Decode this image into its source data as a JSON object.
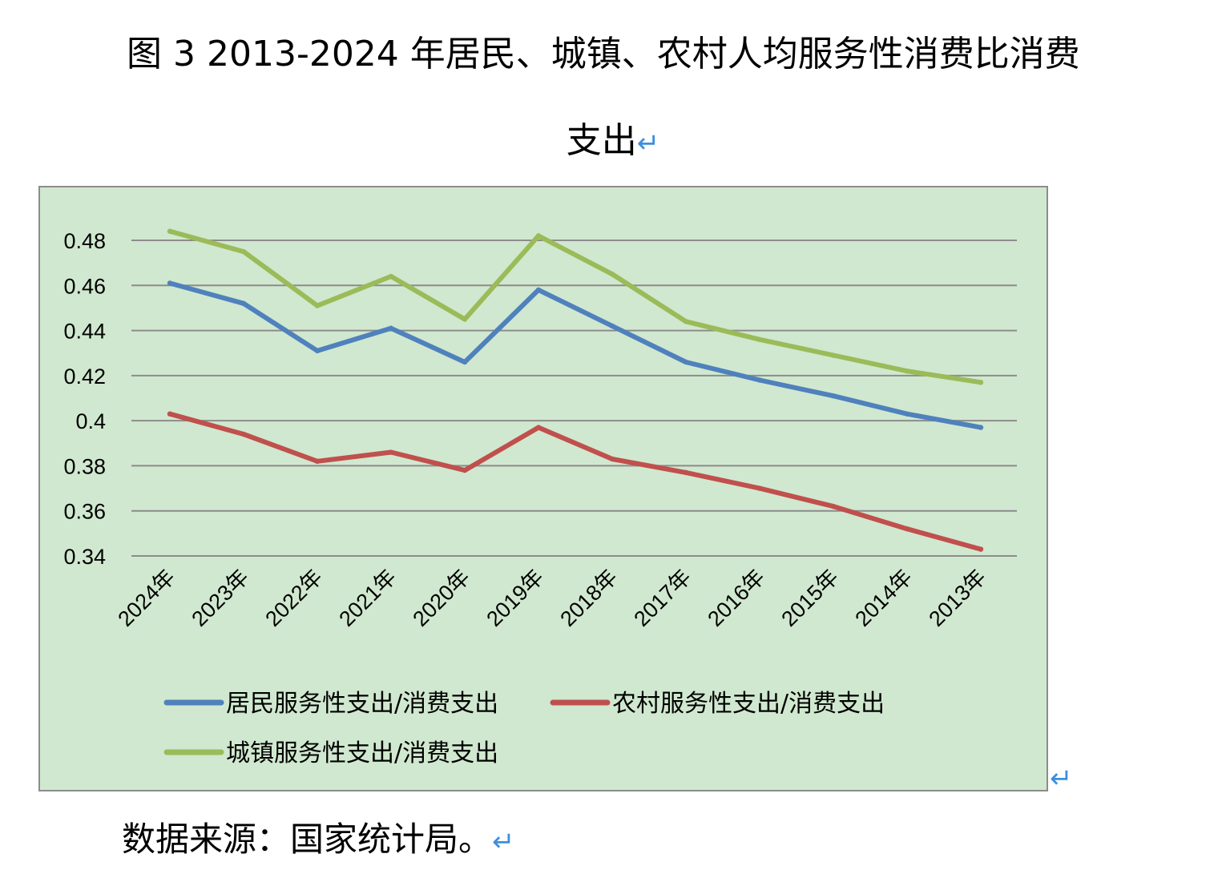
{
  "figure": {
    "title_line_1": "图 3 2013-2024 年居民、城镇、农村人均服务性消费比消费",
    "title_line_2": "支出",
    "return_mark": "↵"
  },
  "source_note": {
    "text": "数据来源：国家统计局。",
    "return_mark": "↵"
  },
  "colors": {
    "plot_background": "#d0e8cf",
    "gridline": "#8c8c8c",
    "series_resident": "#4f81bd",
    "series_rural": "#c0504d",
    "series_urban": "#9bbb59",
    "return_mark": "#3d8fe0"
  },
  "chart_data": {
    "type": "line",
    "title": "",
    "xlabel": "",
    "ylabel": "",
    "categories": [
      "2024年",
      "2023年",
      "2022年",
      "2021年",
      "2020年",
      "2019年",
      "2018年",
      "2017年",
      "2016年",
      "2015年",
      "2014年",
      "2013年"
    ],
    "y_ticks": [
      "0.34",
      "0.36",
      "0.38",
      "0.4",
      "0.42",
      "0.44",
      "0.46",
      "0.48"
    ],
    "ylim": [
      0.34,
      0.48
    ],
    "grid": true,
    "legend_position": "bottom",
    "series": [
      {
        "name": "居民服务性支出/消费支出",
        "color": "#4f81bd",
        "values": [
          0.461,
          0.452,
          0.431,
          0.441,
          0.426,
          0.458,
          0.442,
          0.426,
          0.418,
          0.411,
          0.403,
          0.397
        ]
      },
      {
        "name": "农村服务性支出/消费支出",
        "color": "#c0504d",
        "values": [
          0.403,
          0.394,
          0.382,
          0.386,
          0.378,
          0.397,
          0.383,
          0.377,
          0.37,
          0.362,
          0.352,
          0.343
        ]
      },
      {
        "name": "城镇服务性支出/消费支出",
        "color": "#9bbb59",
        "values": [
          0.484,
          0.475,
          0.451,
          0.464,
          0.445,
          0.482,
          0.465,
          0.444,
          0.436,
          0.429,
          0.422,
          0.417
        ]
      }
    ]
  }
}
